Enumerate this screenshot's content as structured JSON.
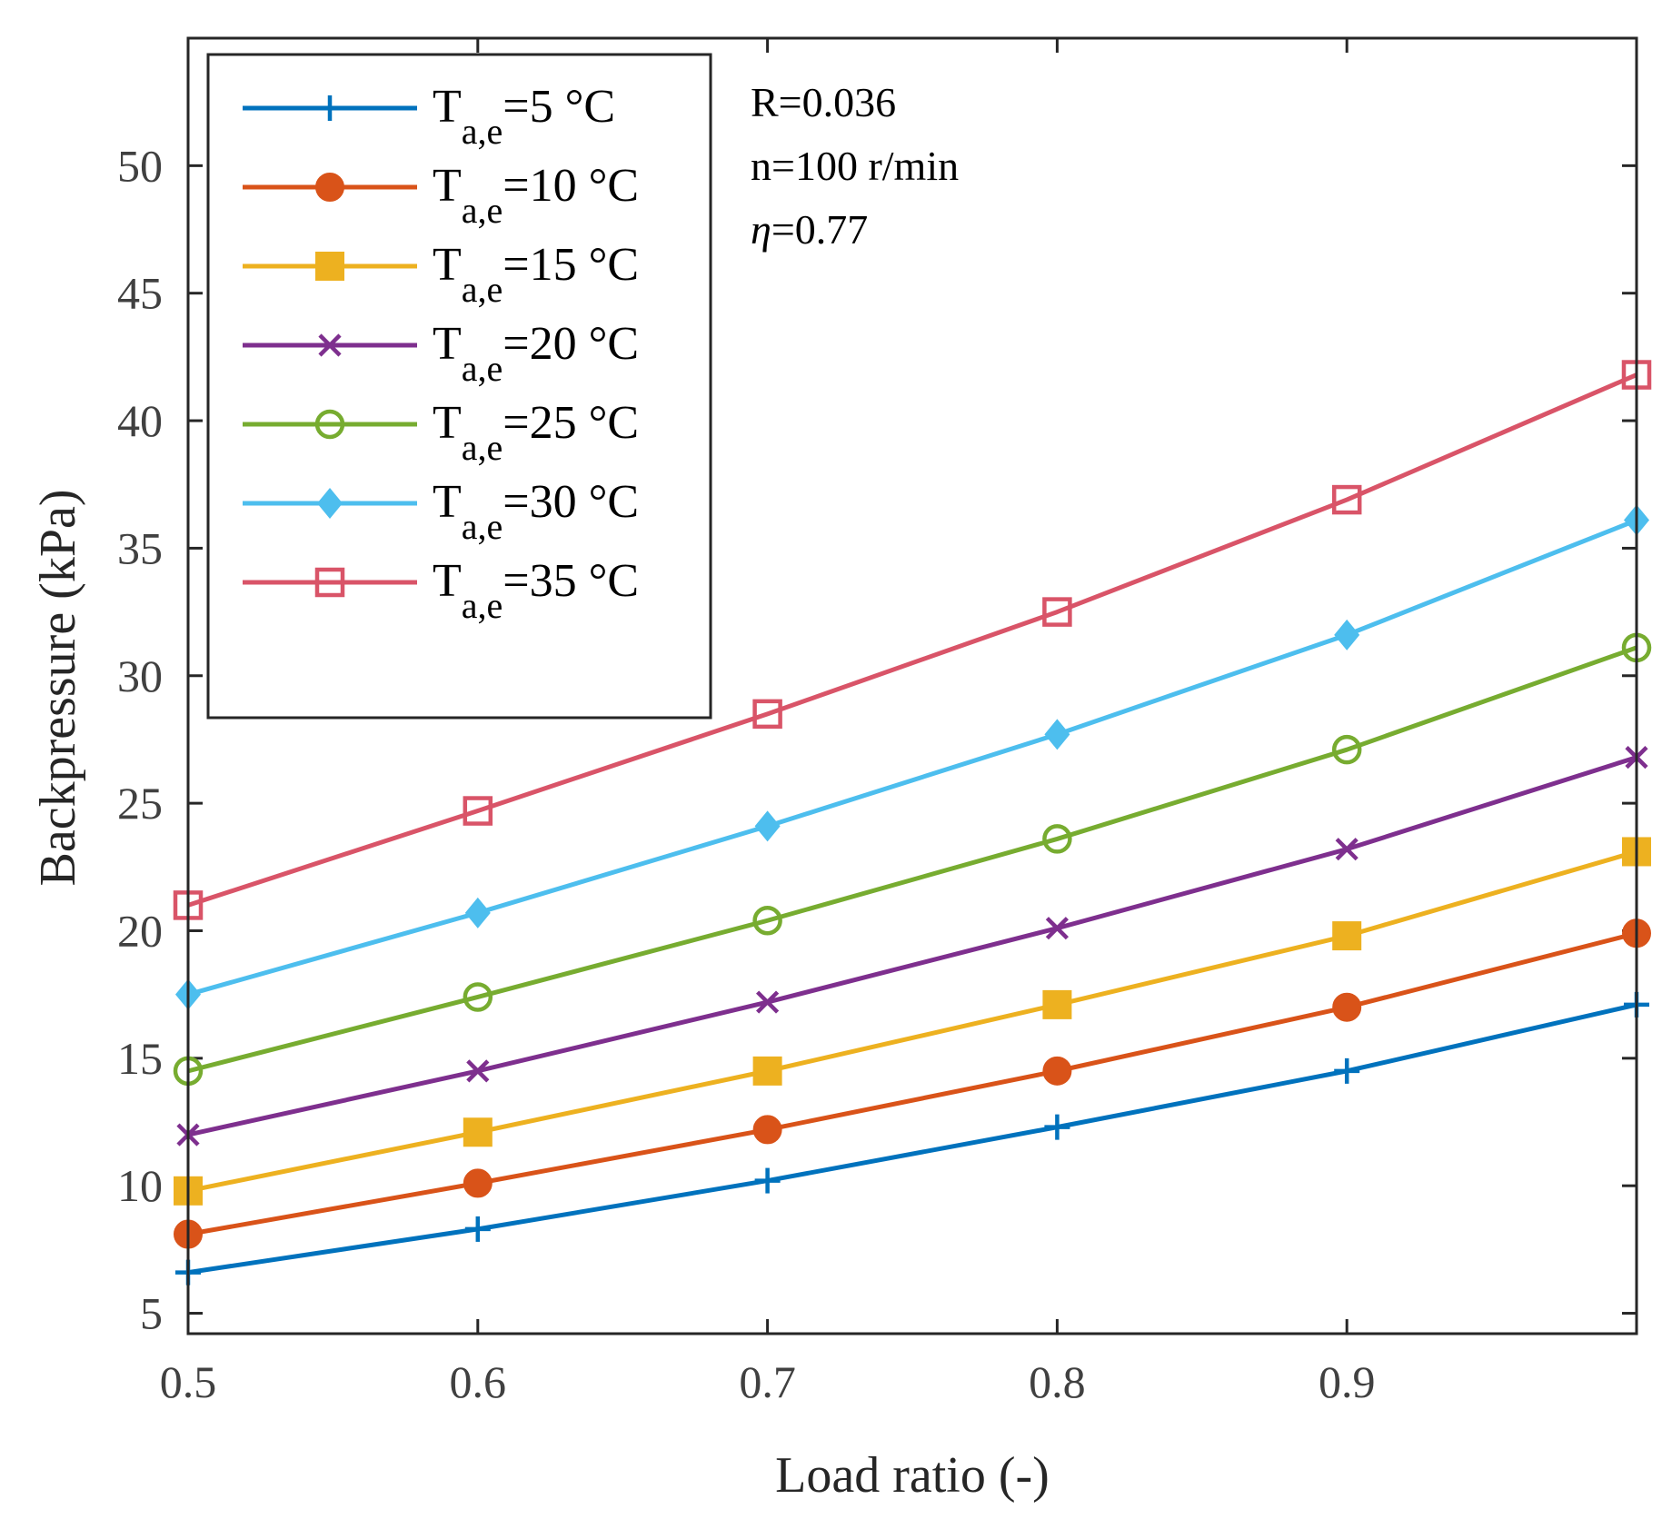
{
  "chart_data": {
    "type": "line",
    "title": "",
    "xlabel": "Load ratio (-)",
    "ylabel": "Backpressure (kPa)",
    "xlim": [
      0.5,
      1.0
    ],
    "ylim": [
      4.2,
      55
    ],
    "x": [
      0.5,
      0.6,
      0.7,
      0.8,
      0.9,
      1.0
    ],
    "x_ticks": [
      0.5,
      0.6,
      0.7,
      0.8,
      0.9
    ],
    "x_tick_labels": [
      "0.5",
      "0.6",
      "0.7",
      "0.8",
      "0.9"
    ],
    "y_ticks": [
      5,
      10,
      15,
      20,
      25,
      30,
      35,
      40,
      45,
      50
    ],
    "y_tick_labels": [
      "5",
      "10",
      "15",
      "20",
      "25",
      "30",
      "35",
      "40",
      "45",
      "50"
    ],
    "grid": false,
    "legend_position": "top-left",
    "series": [
      {
        "name": "T",
        "sub": "a,e",
        "suffix": "=5 °C",
        "color": "#0072BD",
        "marker": "plus",
        "values": [
          6.6,
          8.3,
          10.2,
          12.3,
          14.5,
          17.1
        ]
      },
      {
        "name": "T",
        "sub": "a,e",
        "suffix": "=10 °C",
        "color": "#D95319",
        "marker": "circle-filled",
        "values": [
          8.1,
          10.1,
          12.2,
          14.5,
          17.0,
          19.9
        ]
      },
      {
        "name": "T",
        "sub": "a,e",
        "suffix": "=15 °C",
        "color": "#EDB120",
        "marker": "square-filled",
        "values": [
          9.8,
          12.1,
          14.5,
          17.1,
          19.8,
          23.1
        ]
      },
      {
        "name": "T",
        "sub": "a,e",
        "suffix": "=20 °C",
        "color": "#7E2F8E",
        "marker": "cross",
        "values": [
          12.0,
          14.5,
          17.2,
          20.1,
          23.2,
          26.8
        ]
      },
      {
        "name": "T",
        "sub": "a,e",
        "suffix": "=25 °C",
        "color": "#77AC30",
        "marker": "circle-open",
        "values": [
          14.5,
          17.4,
          20.4,
          23.6,
          27.1,
          31.1
        ]
      },
      {
        "name": "T",
        "sub": "a,e",
        "suffix": "=30 °C",
        "color": "#4DBEEE",
        "marker": "diamond-filled",
        "values": [
          17.5,
          20.7,
          24.1,
          27.7,
          31.6,
          36.1
        ]
      },
      {
        "name": "T",
        "sub": "a,e",
        "suffix": "=35 °C",
        "color": "#D95468",
        "marker": "square-open",
        "values": [
          21.0,
          24.7,
          28.5,
          32.5,
          36.9,
          41.8
        ]
      }
    ],
    "annotations": [
      "R=0.036",
      "n=100 r/min",
      "=0.77"
    ],
    "annotation_symbol": "η"
  }
}
